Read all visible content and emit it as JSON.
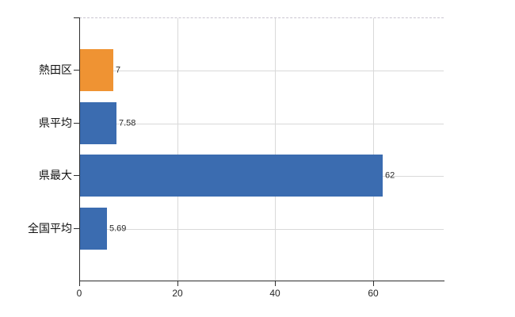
{
  "chart_data": {
    "type": "bar",
    "orientation": "horizontal",
    "title": "",
    "xlabel": "",
    "ylabel": "",
    "categories": [
      "熱田区",
      "県平均",
      "県最大",
      "全国平均"
    ],
    "values": [
      7,
      7.58,
      62,
      5.69
    ],
    "value_labels": [
      "7",
      "7.58",
      "62",
      "5.69"
    ],
    "series": [
      {
        "name": "",
        "values": [
          7,
          7.58,
          62,
          5.69
        ]
      }
    ],
    "bar_colors": [
      "#EF9333",
      "#3B6CB0",
      "#3B6CB0",
      "#3B6CB0"
    ],
    "xlim": [
      0,
      74.4
    ],
    "x_ticks": [
      0,
      20,
      40,
      60
    ],
    "x_tick_labels": [
      "0",
      "20",
      "40",
      "60"
    ],
    "grid": true,
    "legend": false,
    "top_border_style": "dashed"
  },
  "colors": {
    "highlight_bar": "#EF9333",
    "default_bar": "#3B6CB0",
    "gridline": "#D9D9D9",
    "axis_line": "#2E2E2E",
    "top_dashed_border": "#C9C5D0",
    "background": "#FFFFFF",
    "label_text": "#111111",
    "value_text": "#2B2B2B"
  }
}
